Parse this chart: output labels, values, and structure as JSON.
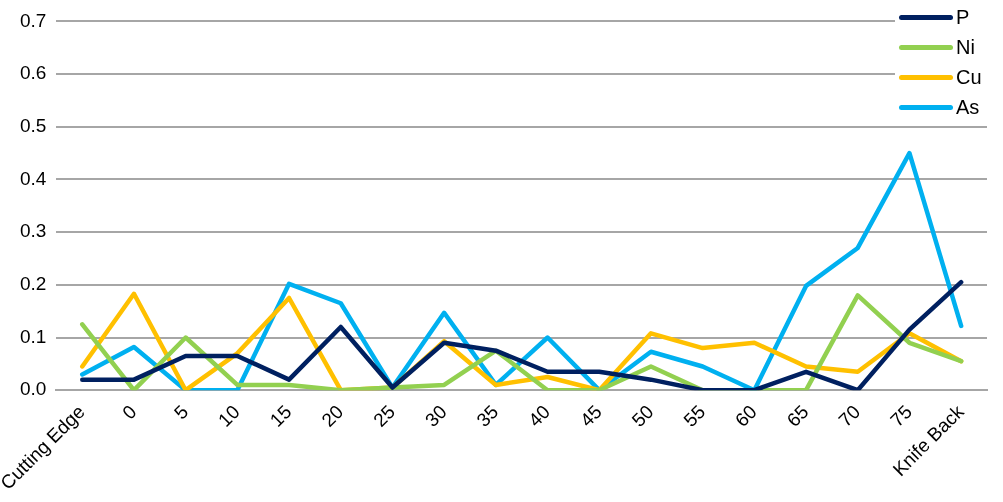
{
  "chart_data": {
    "type": "line",
    "categories": [
      "Cutting Edge",
      "0",
      "5",
      "10",
      "15",
      "20",
      "25",
      "30",
      "35",
      "40",
      "45",
      "50",
      "55",
      "60",
      "65",
      "70",
      "75",
      "Knife Back"
    ],
    "series": [
      {
        "name": "P",
        "color": "#002060",
        "values": [
          0.02,
          0.02,
          0.065,
          0.065,
          0.02,
          0.12,
          0.005,
          0.09,
          0.075,
          0.035,
          0.035,
          0.02,
          0,
          0,
          0.035,
          0,
          0.115,
          0.205
        ]
      },
      {
        "name": "Ni",
        "color": "#92d050",
        "values": [
          0.125,
          0,
          0.1,
          0.01,
          0.01,
          0,
          0.005,
          0.01,
          0.075,
          0,
          0,
          0.045,
          0,
          0,
          0,
          0.18,
          0.09,
          0.055
        ]
      },
      {
        "name": "Cu",
        "color": "#ffc000",
        "values": [
          0.045,
          0.183,
          0,
          0.07,
          0.175,
          0,
          0.005,
          0.093,
          0.01,
          0.025,
          0,
          0.108,
          0.08,
          0.09,
          0.045,
          0.035,
          0.108,
          0.055
        ]
      },
      {
        "name": "As",
        "color": "#00b0f0",
        "values": [
          0.03,
          0.082,
          0,
          0,
          0.202,
          0.165,
          0.005,
          0.147,
          0.01,
          0.1,
          0,
          0.073,
          0.045,
          0,
          0.198,
          0.27,
          0.45,
          0.122
        ]
      }
    ],
    "ylim": [
      0,
      0.7
    ],
    "yticks": [
      {
        "value": 0,
        "label": "0.0"
      },
      {
        "value": 0.1,
        "label": "0.1"
      },
      {
        "value": 0.2,
        "label": "0.2"
      },
      {
        "value": 0.3,
        "label": "0.3"
      },
      {
        "value": 0.4,
        "label": "0.4"
      },
      {
        "value": 0.5,
        "label": "0.5"
      },
      {
        "value": 0.6,
        "label": "0.6"
      },
      {
        "value": 0.7,
        "label": "0.7"
      }
    ],
    "grid": "y",
    "legend": "top right",
    "marker": "none",
    "line_style": "solid"
  }
}
